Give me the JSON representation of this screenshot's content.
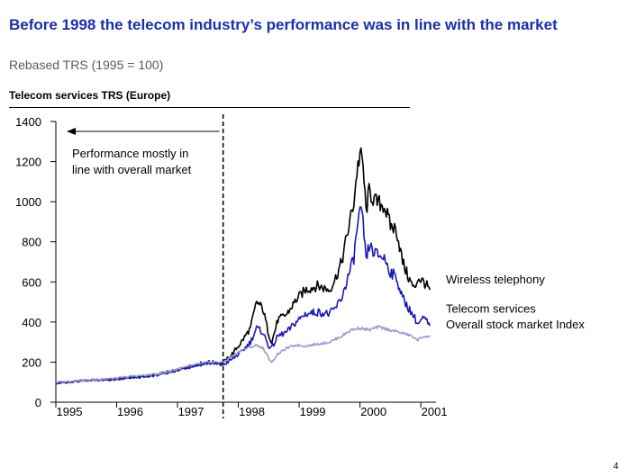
{
  "page": {
    "title": "Before 1998 the telecom industry’s performance was in line with the market",
    "subtitle": "Rebased TRS (1995 = 100)",
    "panel_title": "Telecom services TRS (Europe)",
    "page_number": "4"
  },
  "colors": {
    "title": "#1a2fa8",
    "wireless": "#000000",
    "telecom": "#1a1ab4",
    "market": "#9a9ad0"
  },
  "chart_data": {
    "type": "line",
    "title": "Telecom services TRS (Europe)",
    "ylabel": "Rebased TRS (1995 = 100)",
    "ylim": [
      0,
      1400
    ],
    "yticks": [
      0,
      200,
      400,
      600,
      800,
      1000,
      1200,
      1400
    ],
    "xlim": [
      1995,
      2001.25
    ],
    "xtick_labels": [
      "1995",
      "1996",
      "1997",
      "1998",
      "1999",
      "2000",
      "2001"
    ],
    "xtick_values": [
      1995,
      1996,
      1997,
      1998,
      1999,
      2000,
      2001
    ],
    "divider_x": 1997.75,
    "annotation": "Performance mostly in line with overall market",
    "annotation_lines": [
      "Performance mostly in",
      "line with overall market"
    ],
    "series": [
      {
        "name": "Wireless telephony",
        "color": "#000000",
        "points": [
          [
            1995,
            95
          ],
          [
            1995.25,
            100
          ],
          [
            1995.5,
            110
          ],
          [
            1995.75,
            112
          ],
          [
            1996,
            115
          ],
          [
            1996.25,
            125
          ],
          [
            1996.5,
            130
          ],
          [
            1996.75,
            145
          ],
          [
            1997,
            160
          ],
          [
            1997.25,
            185
          ],
          [
            1997.5,
            200
          ],
          [
            1997.75,
            195
          ],
          [
            1997.9,
            240
          ],
          [
            1998.05,
            300
          ],
          [
            1998.2,
            370
          ],
          [
            1998.3,
            500
          ],
          [
            1998.4,
            470
          ],
          [
            1998.5,
            340
          ],
          [
            1998.55,
            300
          ],
          [
            1998.65,
            410
          ],
          [
            1998.8,
            440
          ],
          [
            1998.95,
            510
          ],
          [
            1999.1,
            560
          ],
          [
            1999.3,
            580
          ],
          [
            1999.5,
            560
          ],
          [
            1999.6,
            620
          ],
          [
            1999.7,
            700
          ],
          [
            1999.8,
            850
          ],
          [
            1999.9,
            1000
          ],
          [
            1999.95,
            1150
          ],
          [
            2000.0,
            1240
          ],
          [
            2000.05,
            1180
          ],
          [
            2000.1,
            950
          ],
          [
            2000.15,
            1050
          ],
          [
            2000.25,
            1000
          ],
          [
            2000.4,
            980
          ],
          [
            2000.5,
            880
          ],
          [
            2000.6,
            860
          ],
          [
            2000.7,
            700
          ],
          [
            2000.8,
            620
          ],
          [
            2000.9,
            560
          ],
          [
            2000.95,
            620
          ],
          [
            2001.05,
            600
          ],
          [
            2001.15,
            560
          ]
        ],
        "end_label": "Wireless telephony",
        "end_value": 615
      },
      {
        "name": "Telecom services",
        "color": "#1a1ab4",
        "points": [
          [
            1995,
            95
          ],
          [
            1995.25,
            100
          ],
          [
            1995.5,
            110
          ],
          [
            1995.75,
            110
          ],
          [
            1996,
            112
          ],
          [
            1996.25,
            122
          ],
          [
            1996.5,
            128
          ],
          [
            1996.75,
            140
          ],
          [
            1997,
            160
          ],
          [
            1997.25,
            180
          ],
          [
            1997.5,
            195
          ],
          [
            1997.75,
            185
          ],
          [
            1997.9,
            215
          ],
          [
            1998.05,
            250
          ],
          [
            1998.2,
            300
          ],
          [
            1998.3,
            370
          ],
          [
            1998.4,
            350
          ],
          [
            1998.5,
            280
          ],
          [
            1998.55,
            270
          ],
          [
            1998.65,
            330
          ],
          [
            1998.8,
            350
          ],
          [
            1998.95,
            400
          ],
          [
            1999.1,
            440
          ],
          [
            1999.3,
            450
          ],
          [
            1999.5,
            440
          ],
          [
            1999.6,
            470
          ],
          [
            1999.7,
            520
          ],
          [
            1999.8,
            620
          ],
          [
            1999.9,
            720
          ],
          [
            1999.95,
            860
          ],
          [
            2000.0,
            950
          ],
          [
            2000.05,
            900
          ],
          [
            2000.1,
            700
          ],
          [
            2000.15,
            780
          ],
          [
            2000.25,
            740
          ],
          [
            2000.4,
            720
          ],
          [
            2000.5,
            650
          ],
          [
            2000.6,
            620
          ],
          [
            2000.7,
            520
          ],
          [
            2000.8,
            470
          ],
          [
            2000.9,
            420
          ],
          [
            2000.95,
            390
          ],
          [
            2001.05,
            420
          ],
          [
            2001.15,
            380
          ]
        ],
        "end_label": "Telecom services",
        "end_value": 470
      },
      {
        "name": "Overall stock market Index",
        "color": "#9a9ad0",
        "points": [
          [
            1995,
            100
          ],
          [
            1995.25,
            105
          ],
          [
            1995.5,
            110
          ],
          [
            1995.75,
            115
          ],
          [
            1996,
            120
          ],
          [
            1996.25,
            130
          ],
          [
            1996.5,
            135
          ],
          [
            1996.75,
            145
          ],
          [
            1997,
            165
          ],
          [
            1997.25,
            185
          ],
          [
            1997.5,
            200
          ],
          [
            1997.75,
            200
          ],
          [
            1997.9,
            230
          ],
          [
            1998.05,
            260
          ],
          [
            1998.2,
            275
          ],
          [
            1998.3,
            285
          ],
          [
            1998.4,
            270
          ],
          [
            1998.5,
            220
          ],
          [
            1998.55,
            200
          ],
          [
            1998.65,
            240
          ],
          [
            1998.8,
            270
          ],
          [
            1998.95,
            285
          ],
          [
            1999.1,
            280
          ],
          [
            1999.3,
            290
          ],
          [
            1999.5,
            300
          ],
          [
            1999.7,
            330
          ],
          [
            1999.85,
            360
          ],
          [
            2000.0,
            370
          ],
          [
            2000.15,
            360
          ],
          [
            2000.3,
            375
          ],
          [
            2000.5,
            360
          ],
          [
            2000.7,
            345
          ],
          [
            2000.85,
            330
          ],
          [
            2000.95,
            310
          ],
          [
            2001.05,
            330
          ],
          [
            2001.15,
            325
          ]
        ],
        "end_label": "Overall stock market Index",
        "end_value": 390
      }
    ]
  }
}
